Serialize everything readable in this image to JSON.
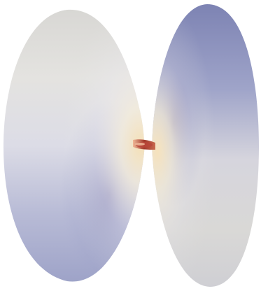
{
  "scene": {
    "description_kind": "3d-surface-render",
    "background_color": "#ffffff",
    "palette": {
      "slate_blue": "#8a8fb8",
      "light_gray": "#e6e6e6",
      "pale_lavender": "#cfd1e3",
      "warm_cream": "#f3e6c6",
      "peach": "#f1b999",
      "deep_violet": "#5a4f8c",
      "throat_red": "#a23a2c"
    }
  }
}
